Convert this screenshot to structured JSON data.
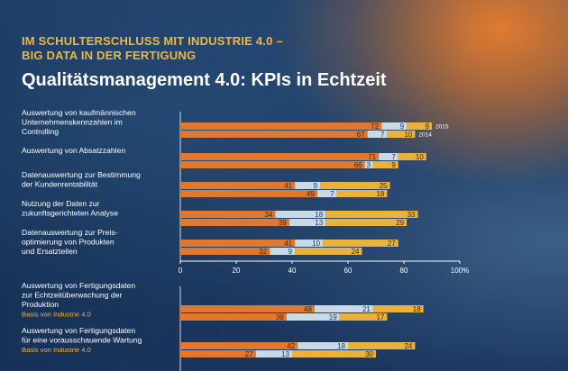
{
  "header": {
    "supertitle_line1": "IM SCHULTERSCHLUSS MIT INDUSTRIE 4.0 –",
    "supertitle_line2": "BIG DATA IN DER FERTIGUNG",
    "title": "Qualitätsmanagement 4.0: KPIs in Echtzeit"
  },
  "colors": {
    "orange": "#e0782f",
    "lightblue": "#c9d9e6",
    "gold": "#e8b23c",
    "label": "#ffffff",
    "subnote": "#f0b83a"
  },
  "chart_data": {
    "type": "bar",
    "stacked": true,
    "orientation": "horizontal",
    "xlim": [
      0,
      100
    ],
    "xticks": [
      "0",
      "20",
      "40",
      "60",
      "80",
      "100%"
    ],
    "segment_colors": [
      "#e0782f",
      "#c9d9e6",
      "#e8b23c"
    ],
    "series_years": [
      "2015",
      "2014"
    ],
    "categories": [
      {
        "label": [
          "Auswertung von kaufmännischen",
          "Unternehmenskennzahlen im",
          "Controlling"
        ],
        "note": "",
        "bars": [
          [
            72,
            9,
            9
          ],
          [
            67,
            7,
            10
          ]
        ]
      },
      {
        "label": [
          "Auswertung von Absatzzahlen"
        ],
        "note": "",
        "bars": [
          [
            71,
            7,
            10
          ],
          [
            66,
            3,
            9
          ]
        ]
      },
      {
        "label": [
          "Datenauswertung zur Bestimmung",
          "der Kundenrentabilität"
        ],
        "note": "",
        "bars": [
          [
            41,
            9,
            25
          ],
          [
            49,
            7,
            18
          ]
        ]
      },
      {
        "label": [
          "Nutzung der Daten zur",
          "zukunftsgerichteten Analyse"
        ],
        "note": "",
        "bars": [
          [
            34,
            18,
            33
          ],
          [
            39,
            13,
            29
          ]
        ]
      },
      {
        "label": [
          "Datenauswertung zur Preis-",
          "optimierung von Produkten",
          "und Ersatzteilen"
        ],
        "note": "",
        "bars": [
          [
            41,
            10,
            27
          ],
          [
            32,
            9,
            24
          ]
        ]
      },
      {
        "label": [
          "Auswertung von Fertigungsdaten",
          "zur Echtzeitüberwachung der",
          "Produktion"
        ],
        "note": "Basis von Industrie 4.0",
        "bars": [
          [
            48,
            21,
            18
          ],
          [
            38,
            19,
            17
          ]
        ]
      },
      {
        "label": [
          "Auswertung von Fertigungsdaten",
          "für eine vorausschauende Wartung"
        ],
        "note": "Basis von Industrie 4.0",
        "bars": [
          [
            42,
            18,
            24
          ],
          [
            27,
            13,
            30
          ]
        ]
      }
    ]
  }
}
